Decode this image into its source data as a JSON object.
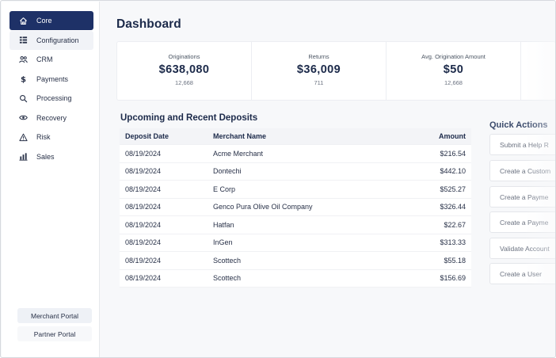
{
  "sidebar": {
    "items": [
      {
        "label": "Core",
        "icon": "home-icon"
      },
      {
        "label": "Configuration",
        "icon": "grid-icon"
      },
      {
        "label": "CRM",
        "icon": "users-icon"
      },
      {
        "label": "Payments",
        "icon": "dollar-icon"
      },
      {
        "label": "Processing",
        "icon": "search-icon"
      },
      {
        "label": "Recovery",
        "icon": "eye-icon"
      },
      {
        "label": "Risk",
        "icon": "warning-icon"
      },
      {
        "label": "Sales",
        "icon": "bar-chart-icon"
      }
    ],
    "merchant_portal": "Merchant Portal",
    "partner_portal": "Partner Portal"
  },
  "main": {
    "title": "Dashboard",
    "stats": [
      {
        "label": "Originations",
        "value": "$638,080",
        "count": "12,668"
      },
      {
        "label": "Returns",
        "value": "$36,009",
        "count": "711"
      },
      {
        "label": "Avg. Origination Amount",
        "value": "$50",
        "count": "12,668"
      }
    ],
    "deposits": {
      "title": "Upcoming and Recent Deposits",
      "headers": [
        "Deposit Date",
        "Merchant Name",
        "Amount"
      ],
      "rows": [
        [
          "08/19/2024",
          "Acme Merchant",
          "$216.54"
        ],
        [
          "08/19/2024",
          "Dontechi",
          "$442.10"
        ],
        [
          "08/19/2024",
          "E Corp",
          "$525.27"
        ],
        [
          "08/19/2024",
          "Genco Pura Olive Oil Company",
          "$326.44"
        ],
        [
          "08/19/2024",
          "Hatfan",
          "$22.67"
        ],
        [
          "08/19/2024",
          "InGen",
          "$313.33"
        ],
        [
          "08/19/2024",
          "Scottech",
          "$55.18"
        ],
        [
          "08/19/2024",
          "Scottech",
          "$156.69"
        ]
      ]
    },
    "quick_actions": {
      "title": "Quick Actions",
      "items": [
        "Submit a Help R",
        "Create a Custom",
        "Create a Payme",
        "Create a Payme",
        "Validate Account",
        "Create a User"
      ]
    }
  },
  "colors": {
    "accent": "#1e3167",
    "background": "#f7f8fa"
  }
}
